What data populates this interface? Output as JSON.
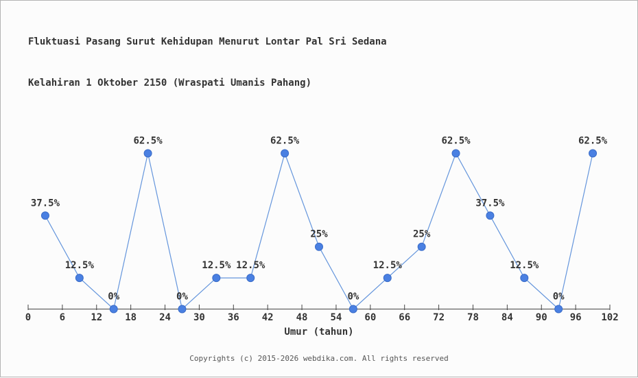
{
  "page": {
    "background": "#fcfcfc",
    "border_color": "#b3b3b3",
    "title_line1": "Fluktuasi Pasang Surut Kehidupan Menurut Lontar Pal Sri Sedana",
    "title_line2": "Kelahiran 1 Oktober 2150 (Wraspati Umanis Pahang)",
    "footer": "Copyrights (c) 2015-2026 webdika.com. All rights reserved"
  },
  "chart_data": {
    "type": "line",
    "title": "Fluktuasi Pasang Surut Kehidupan Menurut Lontar Pal Sri Sedana",
    "subtitle": "Kelahiran 1 Oktober 2150 (Wraspati Umanis Pahang)",
    "xlabel": "Umur (tahun)",
    "ylabel": "",
    "x": [
      3,
      9,
      15,
      21,
      27,
      33,
      39,
      45,
      51,
      57,
      63,
      69,
      75,
      81,
      87,
      93,
      99
    ],
    "values": [
      37.5,
      12.5,
      0,
      62.5,
      0,
      12.5,
      12.5,
      62.5,
      25,
      0,
      12.5,
      25,
      62.5,
      37.5,
      12.5,
      0,
      62.5
    ],
    "point_labels": [
      "37.5%",
      "12.5%",
      "0%",
      "62.5%",
      "0%",
      "12.5%",
      "12.5%",
      "62.5%",
      "25%",
      "0%",
      "12.5%",
      "25%",
      "62.5%",
      "37.5%",
      "12.5%",
      "0%",
      "62.5%"
    ],
    "x_ticks": [
      0,
      6,
      12,
      18,
      24,
      30,
      36,
      42,
      48,
      54,
      60,
      66,
      72,
      78,
      84,
      90,
      96,
      102
    ],
    "xlim": [
      0,
      102
    ],
    "ylim": [
      0,
      70
    ],
    "grid": false,
    "legend": "none",
    "marker": "circle",
    "colors": {
      "line": "#6495dc",
      "marker": "#4a80e2",
      "marker_edge": "#3a6cc8",
      "axis": "#444444",
      "label_text": "#333333",
      "footer_text": "#555555"
    }
  }
}
